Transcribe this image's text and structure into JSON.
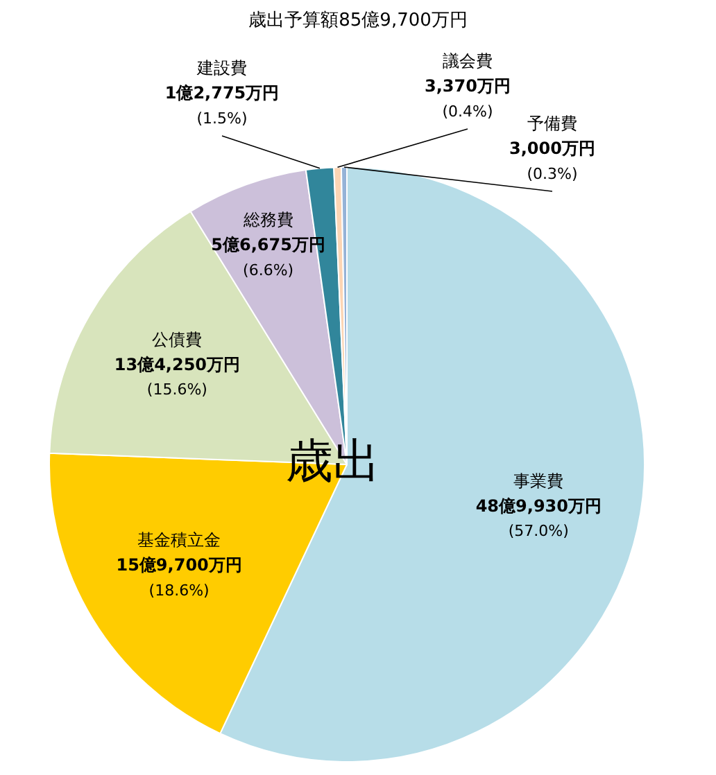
{
  "chart_data": {
    "type": "pie",
    "title": "歳出予算額85億9,700万円",
    "categories": [
      "事業費",
      "基金積立金",
      "公債費",
      "総務費",
      "建設費",
      "議会費",
      "予備費"
    ],
    "values": [
      57.0,
      18.6,
      15.6,
      6.6,
      1.5,
      0.4,
      0.3
    ],
    "value_labels": [
      "48億9,930万円\n(57.0%)",
      "15億9,700万円\n(18.6%)",
      "13億4,250万円\n(15.6%)",
      "5億6,675万円\n(6.6%)",
      "1億2,775万円\n(1.5%)",
      "3,370万円\n(0.4%)",
      "3,000万円\n(0.3%)"
    ],
    "colors": [
      "#b7dde8",
      "#ffcc00",
      "#d8e4bc",
      "#ccc0da",
      "#31869b",
      "#fcd5b4",
      "#95b3d7"
    ],
    "annotations": [
      "歳出"
    ],
    "legend": false
  }
}
